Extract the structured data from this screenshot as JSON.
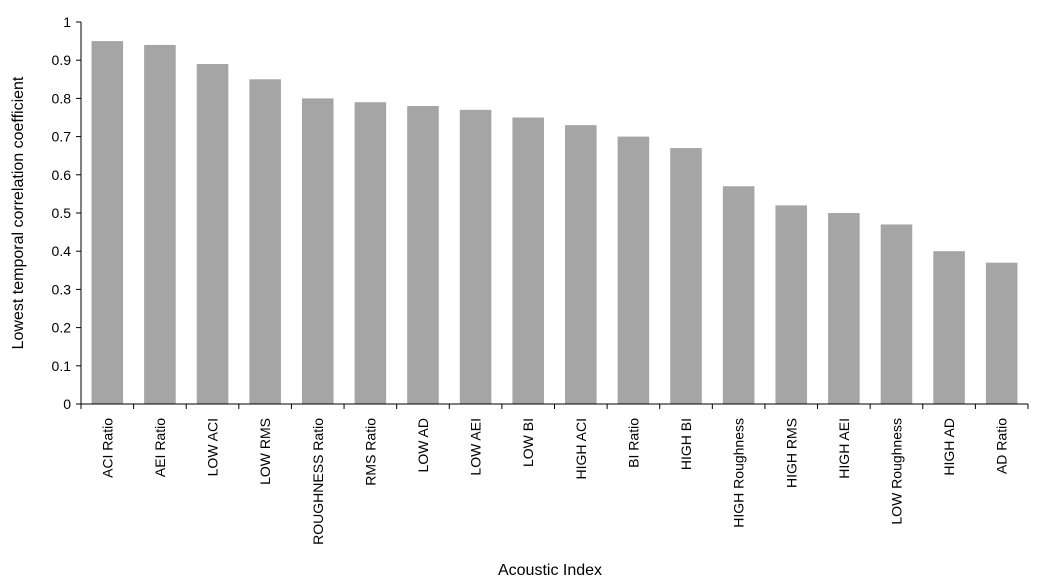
{
  "chart_data": {
    "type": "bar",
    "title": "",
    "xlabel": "Acoustic Index",
    "ylabel": "Lowest temporal correlation coefficient",
    "ylim": [
      0,
      1
    ],
    "yticks": [
      0,
      0.1,
      0.2,
      0.3,
      0.4,
      0.5,
      0.6,
      0.7,
      0.8,
      0.9,
      1
    ],
    "ytick_labels": [
      "0",
      "0.1",
      "0.2",
      "0.3",
      "0.4",
      "0.5",
      "0.6",
      "0.7",
      "0.8",
      "0.9",
      "1"
    ],
    "grid": false,
    "legend": "none",
    "bar_color": "#a5a5a5",
    "categories": [
      "ACI Ratio",
      "AEI Ratio",
      "LOW ACI",
      "LOW RMS",
      "ROUGHNESS Ratio",
      "RMS Ratio",
      "LOW AD",
      "LOW AEI",
      "LOW BI",
      "HIGH ACI",
      "BI Ratio",
      "HIGH BI",
      "HIGH Roughness",
      "HIGH RMS",
      "HIGH AEI",
      "LOW Roughness",
      "HIGH AD",
      "AD Ratio"
    ],
    "values": [
      0.95,
      0.94,
      0.89,
      0.85,
      0.8,
      0.79,
      0.78,
      0.77,
      0.75,
      0.73,
      0.7,
      0.67,
      0.57,
      0.52,
      0.5,
      0.47,
      0.4,
      0.37
    ]
  }
}
